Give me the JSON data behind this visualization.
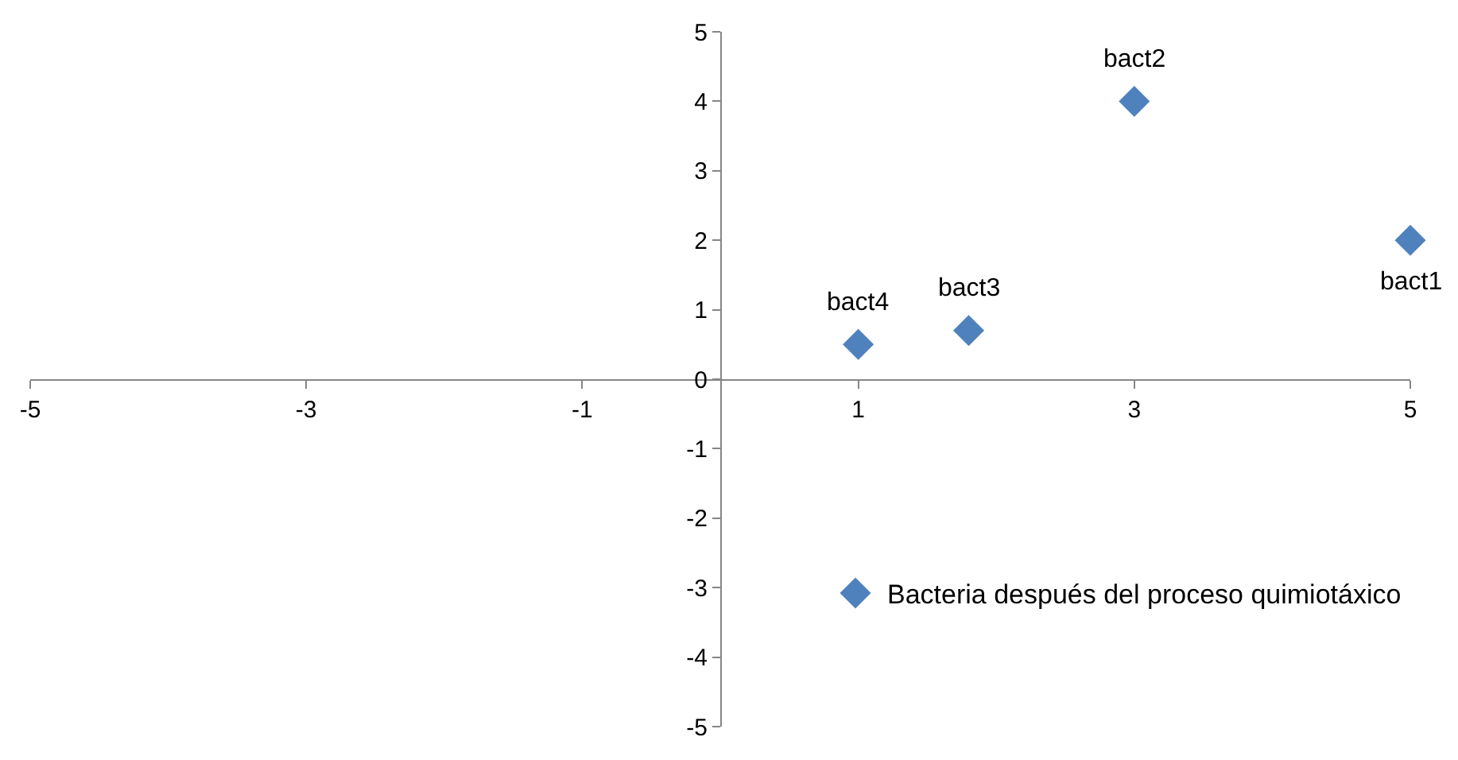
{
  "chart_data": {
    "type": "scatter",
    "x": [
      5,
      3,
      1.8,
      1
    ],
    "series": [
      {
        "name": "Bacteria después del proceso quimiotáxico",
        "color": "#4f81bd",
        "values": [
          2,
          4,
          0.7,
          0.5
        ]
      }
    ],
    "annotations": [
      {
        "text": "bact1",
        "x": 5,
        "y": 2
      },
      {
        "text": "bact2",
        "x": 3,
        "y": 4
      },
      {
        "text": "bact3",
        "x": 1.8,
        "y": 0.7
      },
      {
        "text": "bact4",
        "x": 1,
        "y": 0.5
      }
    ],
    "xlim": [
      -5,
      5
    ],
    "xticks": [
      -5,
      -3,
      -1,
      1,
      3,
      5
    ],
    "ylim": [
      -5,
      5
    ],
    "yticks": [
      -5,
      -4,
      -3,
      -2,
      -1,
      0,
      1,
      2,
      3,
      4,
      5
    ],
    "marker": "diamond",
    "legend": "bottom right"
  }
}
